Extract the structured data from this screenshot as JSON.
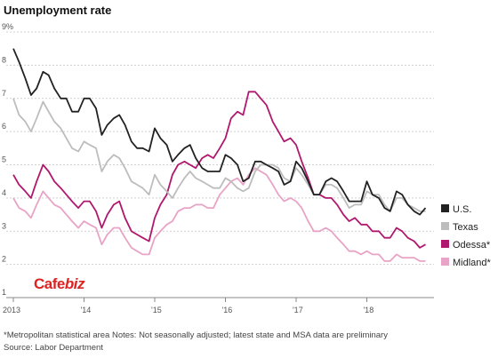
{
  "chart_data": {
    "type": "line",
    "title": "Unemployment rate",
    "xlabel": "",
    "ylabel": "",
    "ylim": [
      1,
      9
    ],
    "y_ticks": [
      "9%",
      "8",
      "7",
      "6",
      "5",
      "4",
      "3",
      "2",
      "1"
    ],
    "x_ticks": [
      "2013",
      "'14",
      "'15",
      "'16",
      "'17",
      "'18"
    ],
    "xlim": [
      2013.0,
      2018.95
    ],
    "grid": true,
    "legend_placement": "right",
    "series": [
      {
        "name": "U.S.",
        "color": "#222222",
        "x": [
          2013.0,
          2013.08,
          2013.17,
          2013.25,
          2013.33,
          2013.42,
          2013.5,
          2013.58,
          2013.67,
          2013.75,
          2013.83,
          2013.92,
          2014.0,
          2014.08,
          2014.17,
          2014.25,
          2014.33,
          2014.42,
          2014.5,
          2014.58,
          2014.67,
          2014.75,
          2014.83,
          2014.92,
          2015.0,
          2015.08,
          2015.17,
          2015.25,
          2015.33,
          2015.42,
          2015.5,
          2015.58,
          2015.67,
          2015.75,
          2015.83,
          2015.92,
          2016.0,
          2016.08,
          2016.17,
          2016.25,
          2016.33,
          2016.42,
          2016.5,
          2016.58,
          2016.67,
          2016.75,
          2016.83,
          2016.92,
          2017.0,
          2017.08,
          2017.17,
          2017.25,
          2017.33,
          2017.42,
          2017.5,
          2017.58,
          2017.67,
          2017.75,
          2017.83,
          2017.92,
          2018.0,
          2018.08,
          2018.17,
          2018.25,
          2018.33,
          2018.42,
          2018.5,
          2018.58,
          2018.67,
          2018.75,
          2018.83
        ],
        "values": [
          8.5,
          8.1,
          7.6,
          7.1,
          7.3,
          7.8,
          7.7,
          7.3,
          7.0,
          7.0,
          6.6,
          6.6,
          7.0,
          7.0,
          6.7,
          5.9,
          6.2,
          6.4,
          6.5,
          6.2,
          5.7,
          5.5,
          5.5,
          5.4,
          6.1,
          5.8,
          5.6,
          5.1,
          5.3,
          5.5,
          5.6,
          5.2,
          4.9,
          4.8,
          4.8,
          4.8,
          5.3,
          5.2,
          5.0,
          4.5,
          4.6,
          5.1,
          5.1,
          5.0,
          4.9,
          4.8,
          4.4,
          4.5,
          5.1,
          4.9,
          4.5,
          4.1,
          4.1,
          4.5,
          4.6,
          4.5,
          4.2,
          3.9,
          3.9,
          3.9,
          4.5,
          4.1,
          4.0,
          3.7,
          3.6,
          4.2,
          4.1,
          3.8,
          3.6,
          3.5,
          3.7
        ]
      },
      {
        "name": "Texas",
        "color": "#bdbdbd",
        "x": [
          2013.0,
          2013.08,
          2013.17,
          2013.25,
          2013.33,
          2013.42,
          2013.5,
          2013.58,
          2013.67,
          2013.75,
          2013.83,
          2013.92,
          2014.0,
          2014.08,
          2014.17,
          2014.25,
          2014.33,
          2014.42,
          2014.5,
          2014.58,
          2014.67,
          2014.75,
          2014.83,
          2014.92,
          2015.0,
          2015.08,
          2015.17,
          2015.25,
          2015.33,
          2015.42,
          2015.5,
          2015.58,
          2015.67,
          2015.75,
          2015.83,
          2015.92,
          2016.0,
          2016.08,
          2016.17,
          2016.25,
          2016.33,
          2016.42,
          2016.5,
          2016.58,
          2016.67,
          2016.75,
          2016.83,
          2016.92,
          2017.0,
          2017.08,
          2017.17,
          2017.25,
          2017.33,
          2017.42,
          2017.5,
          2017.58,
          2017.67,
          2017.75,
          2017.83,
          2017.92,
          2018.0,
          2018.08,
          2018.17,
          2018.25,
          2018.33,
          2018.42,
          2018.5,
          2018.58,
          2018.67,
          2018.75,
          2018.83
        ],
        "values": [
          7.0,
          6.5,
          6.3,
          6.0,
          6.4,
          6.9,
          6.6,
          6.3,
          6.1,
          5.8,
          5.5,
          5.4,
          5.7,
          5.6,
          5.5,
          4.8,
          5.1,
          5.3,
          5.2,
          4.9,
          4.5,
          4.4,
          4.3,
          4.1,
          4.7,
          4.4,
          4.2,
          4.0,
          4.3,
          4.6,
          4.8,
          4.6,
          4.5,
          4.4,
          4.3,
          4.3,
          4.6,
          4.5,
          4.3,
          4.2,
          4.3,
          4.8,
          5.0,
          5.0,
          5.0,
          4.9,
          4.6,
          4.5,
          4.9,
          4.7,
          4.4,
          4.1,
          4.1,
          4.4,
          4.4,
          4.3,
          4.0,
          3.7,
          3.8,
          3.8,
          4.2,
          4.1,
          4.1,
          3.8,
          3.6,
          4.0,
          4.0,
          3.8,
          3.7,
          3.6,
          3.6
        ]
      },
      {
        "name": "Odessa*",
        "color": "#b0186e",
        "x": [
          2013.0,
          2013.08,
          2013.17,
          2013.25,
          2013.33,
          2013.42,
          2013.5,
          2013.58,
          2013.67,
          2013.75,
          2013.83,
          2013.92,
          2014.0,
          2014.08,
          2014.17,
          2014.25,
          2014.33,
          2014.42,
          2014.5,
          2014.58,
          2014.67,
          2014.75,
          2014.83,
          2014.92,
          2015.0,
          2015.08,
          2015.17,
          2015.25,
          2015.33,
          2015.42,
          2015.5,
          2015.58,
          2015.67,
          2015.75,
          2015.83,
          2015.92,
          2016.0,
          2016.08,
          2016.17,
          2016.25,
          2016.33,
          2016.42,
          2016.5,
          2016.58,
          2016.67,
          2016.75,
          2016.83,
          2016.92,
          2017.0,
          2017.08,
          2017.17,
          2017.25,
          2017.33,
          2017.42,
          2017.5,
          2017.58,
          2017.67,
          2017.75,
          2017.83,
          2017.92,
          2018.0,
          2018.08,
          2018.17,
          2018.25,
          2018.33,
          2018.42,
          2018.5,
          2018.58,
          2018.67,
          2018.75,
          2018.83
        ],
        "values": [
          4.7,
          4.4,
          4.2,
          4.0,
          4.5,
          5.0,
          4.8,
          4.5,
          4.3,
          4.1,
          3.9,
          3.7,
          3.9,
          3.9,
          3.6,
          3.1,
          3.5,
          3.8,
          3.9,
          3.4,
          3.0,
          2.9,
          2.8,
          2.7,
          3.4,
          3.8,
          4.1,
          4.7,
          5.0,
          5.1,
          5.0,
          4.9,
          5.2,
          5.3,
          5.2,
          5.5,
          5.8,
          6.4,
          6.6,
          6.5,
          7.2,
          7.2,
          7.0,
          6.8,
          6.3,
          6.0,
          5.7,
          5.8,
          5.6,
          5.1,
          4.6,
          4.1,
          4.1,
          4.0,
          4.0,
          3.8,
          3.5,
          3.3,
          3.4,
          3.2,
          3.2,
          3.0,
          3.0,
          2.8,
          2.8,
          3.1,
          3.0,
          2.8,
          2.7,
          2.5,
          2.6
        ]
      },
      {
        "name": "Midland*",
        "color": "#e8a3c6",
        "x": [
          2013.0,
          2013.08,
          2013.17,
          2013.25,
          2013.33,
          2013.42,
          2013.5,
          2013.58,
          2013.67,
          2013.75,
          2013.83,
          2013.92,
          2014.0,
          2014.08,
          2014.17,
          2014.25,
          2014.33,
          2014.42,
          2014.5,
          2014.58,
          2014.67,
          2014.75,
          2014.83,
          2014.92,
          2015.0,
          2015.08,
          2015.17,
          2015.25,
          2015.33,
          2015.42,
          2015.5,
          2015.58,
          2015.67,
          2015.75,
          2015.83,
          2015.92,
          2016.0,
          2016.08,
          2016.17,
          2016.25,
          2016.33,
          2016.42,
          2016.5,
          2016.58,
          2016.67,
          2016.75,
          2016.83,
          2016.92,
          2017.0,
          2017.08,
          2017.17,
          2017.25,
          2017.33,
          2017.42,
          2017.5,
          2017.58,
          2017.67,
          2017.75,
          2017.83,
          2017.92,
          2018.0,
          2018.08,
          2018.17,
          2018.25,
          2018.33,
          2018.42,
          2018.5,
          2018.58,
          2018.67,
          2018.75,
          2018.83
        ],
        "values": [
          4.0,
          3.7,
          3.6,
          3.4,
          3.8,
          4.2,
          4.0,
          3.8,
          3.7,
          3.5,
          3.3,
          3.1,
          3.3,
          3.2,
          3.1,
          2.6,
          2.9,
          3.1,
          3.1,
          2.8,
          2.5,
          2.4,
          2.3,
          2.3,
          2.8,
          3.0,
          3.2,
          3.3,
          3.6,
          3.7,
          3.7,
          3.8,
          3.8,
          3.7,
          3.7,
          4.1,
          4.3,
          4.5,
          4.6,
          4.4,
          4.7,
          4.9,
          4.8,
          4.7,
          4.4,
          4.1,
          3.9,
          4.0,
          3.9,
          3.7,
          3.3,
          3.0,
          3.0,
          3.1,
          3.0,
          2.8,
          2.6,
          2.4,
          2.4,
          2.3,
          2.4,
          2.3,
          2.3,
          2.1,
          2.1,
          2.3,
          2.2,
          2.2,
          2.2,
          2.1,
          2.1
        ]
      }
    ]
  },
  "footnotes": {
    "line1": "*Metropolitan statistical area Notes: Not seasonally adjusted; latest state and MSA data are preliminary",
    "line2": "Source: Labor Department"
  },
  "watermark": {
    "c": "C",
    "rest": "afe",
    "biz": "biz"
  }
}
